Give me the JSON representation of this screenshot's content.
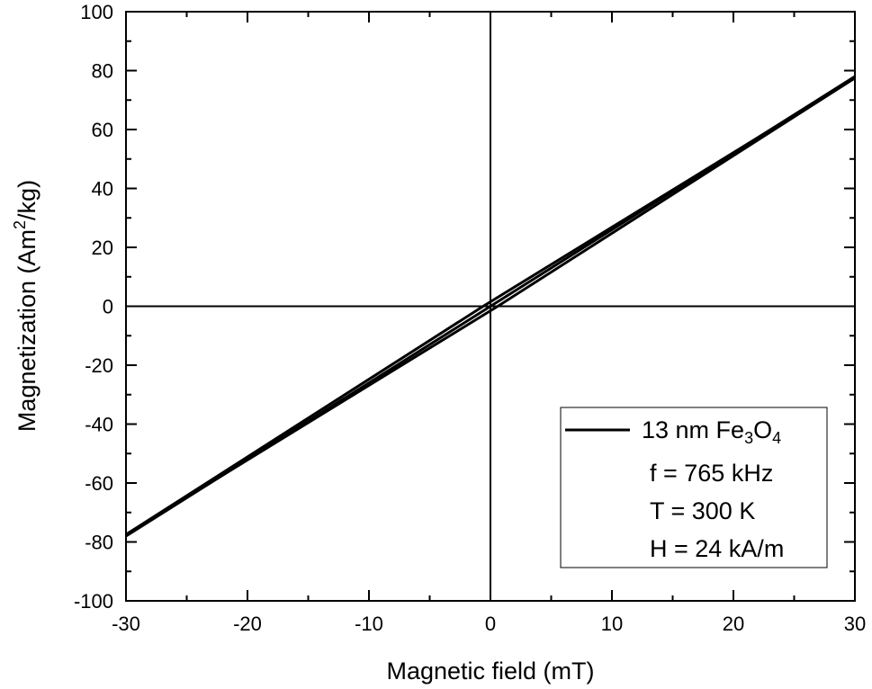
{
  "chart_data": {
    "type": "line",
    "title": "",
    "xlabel": "Magnetic field (mT)",
    "ylabel": {
      "main": "Magnetization (Am",
      "sup": "2",
      "tail": "/kg)"
    },
    "xlim": [
      -30,
      30
    ],
    "ylim": [
      -100,
      100
    ],
    "x_ticks": [
      -30,
      -20,
      -10,
      0,
      10,
      20,
      30
    ],
    "y_ticks": [
      -100,
      -80,
      -60,
      -40,
      -20,
      0,
      20,
      40,
      60,
      80,
      100
    ],
    "x_tick_labels": [
      "-30",
      "-20",
      "-10",
      "0",
      "10",
      "20",
      "30"
    ],
    "y_tick_labels": [
      "-100",
      "-80",
      "-60",
      "-40",
      "-20",
      "0",
      "20",
      "40",
      "60",
      "80",
      "100"
    ],
    "grid": false,
    "zero_lines": true,
    "series": [
      {
        "name": "13 nm Fe3O4",
        "color": "#000000",
        "branches": [
          {
            "x": [
              -30,
              30
            ],
            "y": [
              -78,
              78
            ]
          },
          {
            "x": [
              -30,
              -0.6,
              30
            ],
            "y": [
              -77.5,
              0,
              77.5
            ]
          },
          {
            "x": [
              -30,
              0.6,
              30
            ],
            "y": [
              -77.5,
              0,
              77.5
            ]
          }
        ]
      }
    ],
    "legend": {
      "position": "bottom-right",
      "label": {
        "prefix": "13 nm Fe",
        "sub1": "3",
        "mid": "O",
        "sub2": "4"
      },
      "annotations": [
        "f = 765 kHz",
        "T = 300 K",
        "H = 24 kA/m"
      ]
    }
  }
}
